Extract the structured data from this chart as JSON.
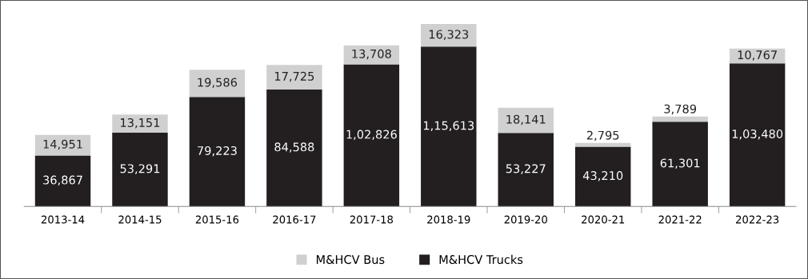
{
  "chart_data": {
    "type": "bar",
    "stacked": true,
    "legend": "bottom",
    "grid": false,
    "tick_labels": "x",
    "categories": [
      "2013-14",
      "2014-15",
      "2015-16",
      "2016-17",
      "2017-18",
      "2018-19",
      "2019-20",
      "2020-21",
      "2021-22",
      "2022-23"
    ],
    "series": [
      {
        "name": "M&HCV Trucks",
        "color": "#231f20",
        "values": [
          36867,
          53291,
          79223,
          84588,
          102826,
          115613,
          53227,
          43210,
          61301,
          103480
        ],
        "value_labels": [
          "36,867",
          "53,291",
          "79,223",
          "84,588",
          "1,02,826",
          "1,15,613",
          "53,227",
          "43,210",
          "61,301",
          "1,03,480"
        ]
      },
      {
        "name": "M&HCV Bus",
        "color": "#d0d0d0",
        "values": [
          14951,
          13151,
          19586,
          17725,
          13708,
          16323,
          18141,
          2795,
          3789,
          10767
        ],
        "value_labels": [
          "14,951",
          "13,151",
          "19,586",
          "17,725",
          "13,708",
          "16,323",
          "18,141",
          "2,795",
          "3,789",
          "10,767"
        ]
      }
    ]
  }
}
